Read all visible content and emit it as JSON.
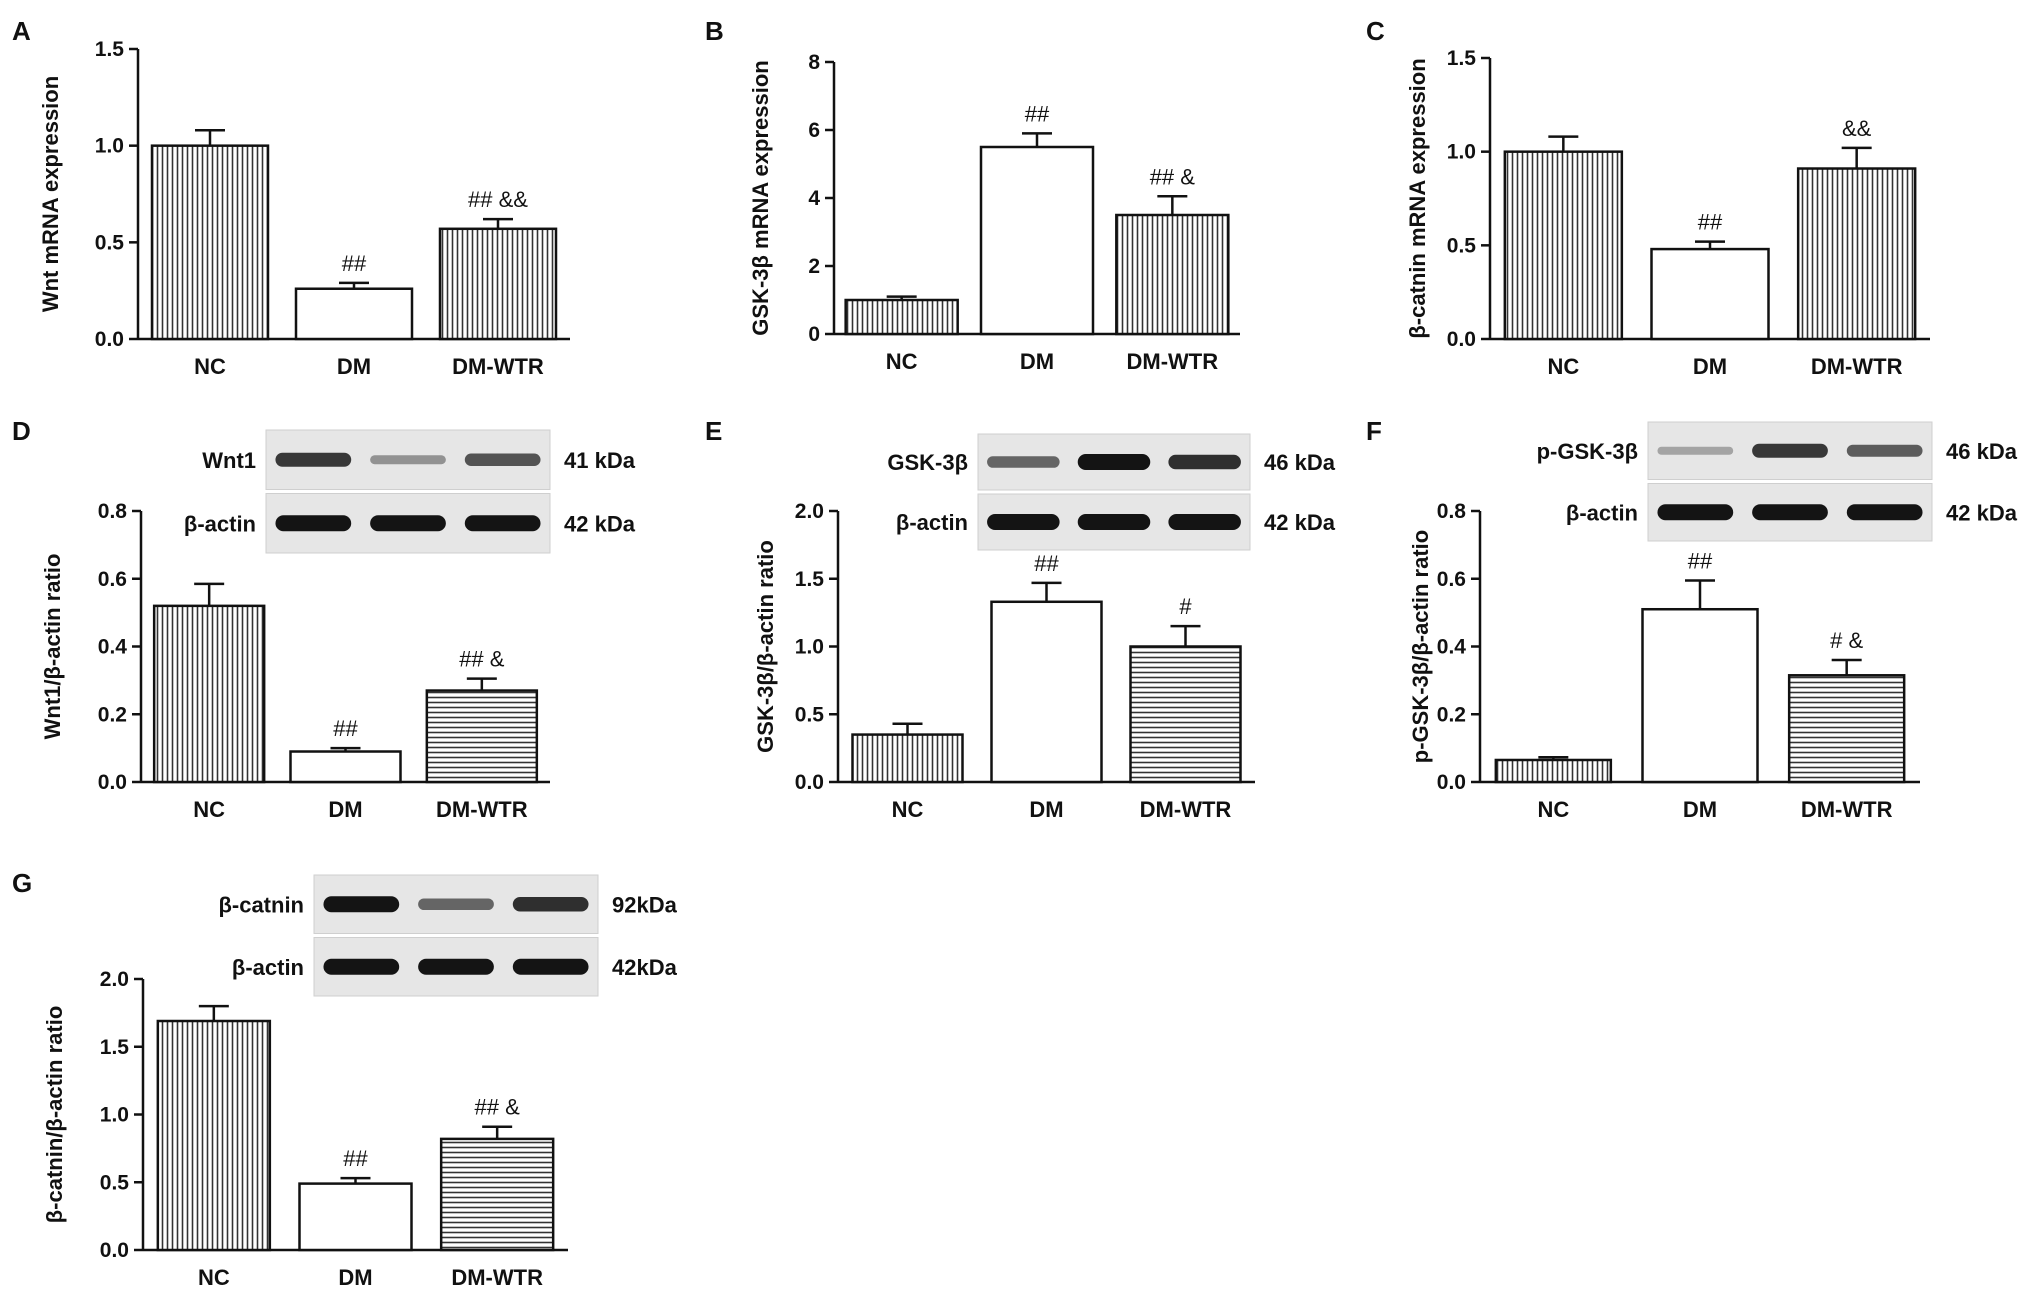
{
  "chart_data": [
    {
      "panel": "A",
      "type": "bar",
      "ylabel": "Wnt mRNA expression",
      "ylim": [
        0,
        1.5
      ],
      "yticks": [
        0.0,
        0.5,
        1.0,
        1.5
      ],
      "categories": [
        "NC",
        "DM",
        "DM-WTR"
      ],
      "values": [
        1.0,
        0.26,
        0.57
      ],
      "errors": [
        0.08,
        0.03,
        0.05
      ],
      "annotations": [
        "",
        "##",
        "## &&"
      ],
      "fills": [
        "vlines",
        "white",
        "vlines"
      ]
    },
    {
      "panel": "B",
      "type": "bar",
      "ylabel": "GSK-3β  mRNA expression",
      "ylim": [
        0,
        8
      ],
      "yticks": [
        0,
        2,
        4,
        6,
        8
      ],
      "categories": [
        "NC",
        "DM",
        "DM-WTR"
      ],
      "values": [
        1.0,
        5.5,
        3.5
      ],
      "errors": [
        0.1,
        0.4,
        0.55
      ],
      "annotations": [
        "",
        "##",
        "## &"
      ],
      "fills": [
        "vlines",
        "white",
        "vlines"
      ]
    },
    {
      "panel": "C",
      "type": "bar",
      "ylabel": "β-catnin mRNA expression",
      "ylim": [
        0,
        1.5
      ],
      "yticks": [
        0.0,
        0.5,
        1.0,
        1.5
      ],
      "categories": [
        "NC",
        "DM",
        "DM-WTR"
      ],
      "values": [
        1.0,
        0.48,
        0.91
      ],
      "errors": [
        0.08,
        0.04,
        0.11
      ],
      "annotations": [
        "",
        "##",
        "&&"
      ],
      "fills": [
        "vlines",
        "white",
        "vlines"
      ]
    },
    {
      "panel": "D",
      "type": "bar",
      "ylabel": "Wnt1/β-actin ratio",
      "ylim": [
        0,
        0.8
      ],
      "yticks": [
        0.0,
        0.2,
        0.4,
        0.6,
        0.8
      ],
      "categories": [
        "NC",
        "DM",
        "DM-WTR"
      ],
      "values": [
        0.52,
        0.09,
        0.27
      ],
      "errors": [
        0.065,
        0.01,
        0.035
      ],
      "annotations": [
        "",
        "##",
        "## &"
      ],
      "fills": [
        "vlines",
        "white",
        "hlines"
      ],
      "blot": [
        {
          "label": "Wnt1",
          "kda": "41 kDa",
          "bands": [
            0.8,
            0.3,
            0.65
          ]
        },
        {
          "label": "β-actin",
          "kda": "42 kDa",
          "bands": [
            1.0,
            1.0,
            1.0
          ]
        }
      ]
    },
    {
      "panel": "E",
      "type": "bar",
      "ylabel": "GSK-3β/β-actin ratio",
      "ylim": [
        0,
        2.0
      ],
      "yticks": [
        0.0,
        0.5,
        1.0,
        1.5,
        2.0
      ],
      "categories": [
        "NC",
        "DM",
        "DM-WTR"
      ],
      "values": [
        0.35,
        1.33,
        1.0
      ],
      "errors": [
        0.08,
        0.14,
        0.15
      ],
      "annotations": [
        "",
        "##",
        "#"
      ],
      "fills": [
        "vlines",
        "white",
        "hlines"
      ],
      "blot": [
        {
          "label": "GSK-3β",
          "kda": "46 kDa",
          "bands": [
            0.55,
            1.0,
            0.85
          ]
        },
        {
          "label": "β-actin",
          "kda": "42 kDa",
          "bands": [
            1.0,
            1.0,
            1.0
          ]
        }
      ]
    },
    {
      "panel": "F",
      "type": "bar",
      "ylabel": "p-GSK-3β/β-actin ratio",
      "ylim": [
        0,
        0.8
      ],
      "yticks": [
        0.0,
        0.2,
        0.4,
        0.6,
        0.8
      ],
      "categories": [
        "NC",
        "DM",
        "DM-WTR"
      ],
      "values": [
        0.065,
        0.51,
        0.315
      ],
      "errors": [
        0.008,
        0.085,
        0.045
      ],
      "annotations": [
        "",
        "##",
        "# &"
      ],
      "fills": [
        "vlines",
        "white",
        "hlines"
      ],
      "blot": [
        {
          "label": "p-GSK-3β",
          "kda": "46 kDa",
          "bands": [
            0.2,
            0.8,
            0.6
          ]
        },
        {
          "label": "β-actin",
          "kda": "42 kDa",
          "bands": [
            1.0,
            1.0,
            1.0
          ]
        }
      ]
    },
    {
      "panel": "G",
      "type": "bar",
      "ylabel": "β-catnin/β-actin ratio",
      "ylim": [
        0,
        2.0
      ],
      "yticks": [
        0.0,
        0.5,
        1.0,
        1.5,
        2.0
      ],
      "categories": [
        "NC",
        "DM",
        "DM-WTR"
      ],
      "values": [
        1.69,
        0.49,
        0.82
      ],
      "errors": [
        0.11,
        0.04,
        0.09
      ],
      "annotations": [
        "",
        "##",
        "## &"
      ],
      "fills": [
        "vlines",
        "white",
        "hlines"
      ],
      "blot": [
        {
          "label": "β-catnin",
          "kda": "92kDa",
          "bands": [
            1.0,
            0.55,
            0.85
          ]
        },
        {
          "label": "β-actin",
          "kda": "42kDa",
          "bands": [
            1.0,
            1.0,
            1.0
          ]
        }
      ]
    }
  ]
}
